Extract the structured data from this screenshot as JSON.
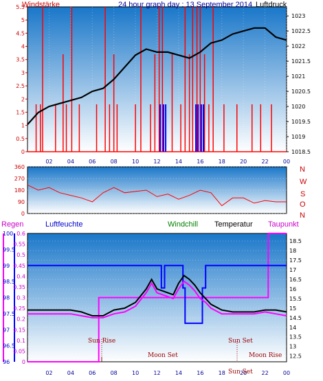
{
  "header": {
    "left_label": "Windstärke",
    "title": "24 hour graph day : 13 September 2014",
    "right_label": "Luftdruck"
  },
  "middle": {
    "compass": [
      "N",
      "W",
      "S",
      "O",
      "N"
    ]
  },
  "bottom_header": {
    "regen": "Regen",
    "luftfeuchte": "Luftfeuchte",
    "windchill": "Windchill",
    "temperatur": "Temperatur",
    "taupunkt": "Taupunkt"
  },
  "annotations": {
    "sun_rise": "Sun Rise",
    "moon_set": "Moon Set",
    "sun_set": "Sun Set",
    "moon_rise": "Moon Rise",
    "sun_set_short": "Sun Set"
  },
  "colors": {
    "wind": "#ff0000",
    "gust": "#0000ff",
    "pressure": "#000000",
    "humidity": "#0000ff",
    "temperature": "#000000",
    "windchill": "#008000",
    "dewpoint": "#ff00ff",
    "rain": "#ff00ff",
    "panel_top": "#1a77c9",
    "panel_bottom": "#ffffff"
  },
  "chart_data": [
    {
      "type": "line",
      "id": "wind_pressure",
      "x_ticks": [
        "02",
        "04",
        "06",
        "08",
        "10",
        "12",
        "14",
        "16",
        "18",
        "20",
        "22",
        "00"
      ],
      "left_axis": {
        "label": "Windstärke",
        "ylim": [
          0,
          5.5
        ],
        "ticks": [
          "0",
          "0.5",
          "1",
          "1.5",
          "2",
          "2.5",
          "3",
          "3.5",
          "4",
          "4.5",
          "5",
          "5.5"
        ]
      },
      "right_axis": {
        "label": "Luftdruck",
        "ylim": [
          1018.5,
          1023.3
        ],
        "ticks": [
          "1018.5",
          "1019",
          "1019.5",
          "1020",
          "1020.5",
          "1021",
          "1021.5",
          "1022",
          "1022.5",
          "1023"
        ]
      },
      "series": [
        {
          "name": "Luftdruck",
          "axis": "right",
          "x": [
            0,
            1,
            2,
            3,
            4,
            5,
            6,
            7,
            8,
            9,
            10,
            11,
            12,
            13,
            14,
            15,
            16,
            17,
            18,
            19,
            20,
            21,
            22,
            23,
            24
          ],
          "values": [
            1019.4,
            1019.8,
            1020.0,
            1020.1,
            1020.2,
            1020.3,
            1020.5,
            1020.6,
            1020.9,
            1021.3,
            1021.7,
            1021.9,
            1021.8,
            1021.8,
            1021.7,
            1021.6,
            1021.8,
            1022.1,
            1022.2,
            1022.4,
            1022.5,
            1022.6,
            1022.6,
            1022.3,
            1022.2
          ]
        },
        {
          "name": "Windstärke spikes",
          "axis": "left",
          "x": [
            0.8,
            1.2,
            1.4,
            2.6,
            3.3,
            3.6,
            4.1,
            4.8,
            6.4,
            7.2,
            7.6,
            8.0,
            8.3,
            10.0,
            10.5,
            11.4,
            11.8,
            12.2,
            12.5,
            13.4,
            14.2,
            14.6,
            15.0,
            15.3,
            15.7,
            16.0,
            16.4,
            16.8,
            17.2,
            18.2,
            19.4,
            20.8,
            21.6,
            22.6
          ],
          "values": [
            1.8,
            1.8,
            5.5,
            1.8,
            3.7,
            1.8,
            5.5,
            1.8,
            1.8,
            5.5,
            1.8,
            3.7,
            1.8,
            1.8,
            5.5,
            1.8,
            3.7,
            5.5,
            5.5,
            3.7,
            1.8,
            5.5,
            3.7,
            5.5,
            5.5,
            5.5,
            3.7,
            1.8,
            5.5,
            1.8,
            1.8,
            1.8,
            1.8,
            1.8
          ]
        },
        {
          "name": "Böen",
          "axis": "left",
          "x": [
            12.3,
            12.6,
            12.8,
            15.6,
            15.8,
            16.1,
            16.3
          ],
          "values": [
            1.8,
            1.8,
            1.8,
            1.8,
            1.8,
            1.8,
            1.8
          ]
        }
      ]
    },
    {
      "type": "line",
      "id": "wind_direction",
      "left_axis": {
        "ylim": [
          0,
          360
        ],
        "ticks": [
          "0",
          "90",
          "180",
          "270",
          "360"
        ]
      },
      "right_axis": {
        "ticks": [
          "N",
          "W",
          "S",
          "O",
          "N"
        ]
      },
      "series": [
        {
          "name": "Windrichtung",
          "x": [
            0,
            1,
            2,
            3,
            4,
            5,
            6,
            7,
            8,
            9,
            10,
            11,
            12,
            13,
            14,
            15,
            16,
            17,
            18,
            19,
            20,
            21,
            22,
            23,
            24
          ],
          "values": [
            220,
            180,
            200,
            160,
            140,
            120,
            90,
            160,
            200,
            160,
            170,
            180,
            130,
            150,
            110,
            140,
            180,
            160,
            60,
            120,
            120,
            80,
            100,
            90,
            90
          ]
        }
      ]
    },
    {
      "type": "line",
      "id": "temp_humidity",
      "x_ticks": [
        "02",
        "04",
        "06",
        "08",
        "10",
        "12",
        "14",
        "16",
        "18",
        "20",
        "22",
        "00"
      ],
      "regen_axis": {
        "label": "Regen",
        "ylim": [
          0,
          0.6
        ],
        "ticks": [
          "0",
          "0.05",
          "0.1",
          "0.15",
          "0.2",
          "0.25",
          "0.3",
          "0.35",
          "0.4",
          "0.45",
          "0.5",
          "0.55",
          "0.6"
        ]
      },
      "humidity_axis": {
        "label": "Luftfeuchte",
        "ylim": [
          96,
          100
        ],
        "ticks": [
          "96",
          "96.5",
          "97",
          "97.5",
          "98",
          "98.5",
          "99",
          "99.5",
          "100"
        ]
      },
      "temp_axis": {
        "label": "Temperatur",
        "ylim": [
          12.2,
          18.9
        ],
        "ticks": [
          "12.5",
          "13",
          "13.5",
          "14",
          "14.5",
          "15",
          "15.5",
          "16",
          "16.5",
          "17",
          "17.5",
          "18",
          "18.5"
        ]
      },
      "series": [
        {
          "name": "Luftfeuchte",
          "axis": "humidity",
          "x": [
            0,
            12.4,
            12.4,
            12.7,
            12.7,
            14.4,
            14.4,
            14.6,
            14.6,
            15.0,
            15.0,
            16.2,
            16.2,
            16.5,
            16.5,
            24
          ],
          "values": [
            99,
            99,
            98.3,
            98.3,
            99,
            99,
            98.3,
            98.3,
            97.2,
            97.2,
            97.2,
            97.2,
            98.3,
            98.3,
            99,
            99
          ]
        },
        {
          "name": "Temperatur",
          "axis": "temp",
          "x": [
            0,
            1,
            2,
            3,
            4,
            5,
            6,
            7,
            8,
            9,
            10,
            11,
            11.5,
            12,
            12.5,
            13,
            13.5,
            14,
            14.5,
            15,
            15.5,
            16,
            16.5,
            17,
            18,
            19,
            20,
            21,
            22,
            23,
            24
          ],
          "values": [
            14.9,
            14.9,
            14.9,
            14.9,
            14.9,
            14.8,
            14.6,
            14.6,
            14.9,
            15.0,
            15.3,
            16.0,
            16.5,
            16.0,
            15.9,
            15.8,
            15.7,
            16.3,
            16.7,
            16.5,
            16.2,
            15.8,
            15.5,
            15.2,
            14.9,
            14.8,
            14.8,
            14.8,
            14.9,
            14.9,
            14.8
          ]
        },
        {
          "name": "Taupunkt",
          "axis": "temp",
          "x": [
            0,
            1,
            2,
            3,
            4,
            5,
            6,
            7,
            8,
            9,
            10,
            11,
            11.5,
            12,
            12.5,
            13,
            13.5,
            14,
            14.5,
            15,
            15.5,
            16,
            16.5,
            17,
            18,
            19,
            20,
            21,
            22,
            23,
            24
          ],
          "values": [
            14.7,
            14.7,
            14.7,
            14.7,
            14.7,
            14.6,
            14.5,
            14.5,
            14.7,
            14.8,
            15.1,
            15.8,
            16.3,
            15.8,
            15.7,
            15.6,
            15.5,
            16.0,
            16.4,
            16.2,
            15.9,
            15.5,
            15.3,
            15.0,
            14.7,
            14.7,
            14.7,
            14.7,
            14.8,
            14.7,
            14.6
          ]
        },
        {
          "name": "Regen",
          "axis": "regen",
          "x": [
            0,
            6.6,
            6.6,
            19.2,
            19.2,
            22.3,
            22.3,
            24
          ],
          "values": [
            0,
            0,
            0.3,
            0.3,
            0.3,
            0.3,
            0.6,
            0.6
          ]
        }
      ]
    }
  ]
}
